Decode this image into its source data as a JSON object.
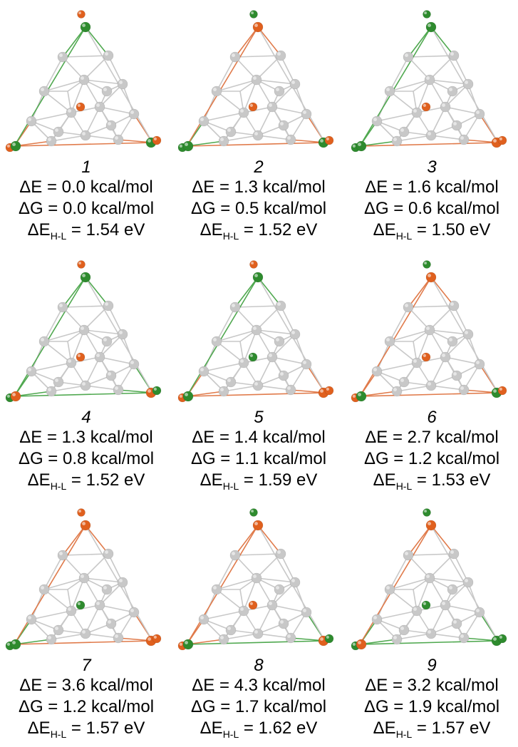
{
  "colors": {
    "silver": "#c8c8c8",
    "orange": "#e0601e",
    "green": "#2e8b2e"
  },
  "structures": [
    {
      "number": "1",
      "dE": "ΔE = 0.0 kcal/mol",
      "dG": "ΔG = 0.0 kcal/mol",
      "gap_prefix": "ΔE",
      "gap_sub": "H-L",
      "gap_value": " = 1.54 eV"
    },
    {
      "number": "2",
      "dE": "ΔE = 1.3 kcal/mol",
      "dG": "ΔG = 0.5 kcal/mol",
      "gap_prefix": "ΔE",
      "gap_sub": "H-L",
      "gap_value": " = 1.52 eV"
    },
    {
      "number": "3",
      "dE": "ΔE = 1.6 kcal/mol",
      "dG": "ΔG = 0.6 kcal/mol",
      "gap_prefix": "ΔE",
      "gap_sub": "H-L",
      "gap_value": " = 1.50 eV"
    },
    {
      "number": "4",
      "dE": "ΔE = 1.3 kcal/mol",
      "dG": "ΔG = 0.8 kcal/mol",
      "gap_prefix": "ΔE",
      "gap_sub": "H-L",
      "gap_value": " = 1.52 eV"
    },
    {
      "number": "5",
      "dE": "ΔE = 1.4 kcal/mol",
      "dG": "ΔG = 1.1 kcal/mol",
      "gap_prefix": "ΔE",
      "gap_sub": "H-L",
      "gap_value": " = 1.59 eV"
    },
    {
      "number": "6",
      "dE": "ΔE = 2.7 kcal/mol",
      "dG": "ΔG = 1.2 kcal/mol",
      "gap_prefix": "ΔE",
      "gap_sub": "H-L",
      "gap_value": " = 1.53 eV"
    },
    {
      "number": "7",
      "dE": "ΔE = 3.6 kcal/mol",
      "dG": "ΔG = 1.2 kcal/mol",
      "gap_prefix": "ΔE",
      "gap_sub": "H-L",
      "gap_value": " = 1.57 eV"
    },
    {
      "number": "8",
      "dE": "ΔE = 4.3 kcal/mol",
      "dG": "ΔG = 1.7 kcal/mol",
      "gap_prefix": "ΔE",
      "gap_sub": "H-L",
      "gap_value": " = 1.62 eV"
    },
    {
      "number": "9",
      "dE": "ΔE = 3.2 kcal/mol",
      "dG": "ΔG = 1.9 kcal/mol",
      "gap_prefix": "ΔE",
      "gap_sub": "H-L",
      "gap_value": " = 1.57 eV"
    }
  ]
}
